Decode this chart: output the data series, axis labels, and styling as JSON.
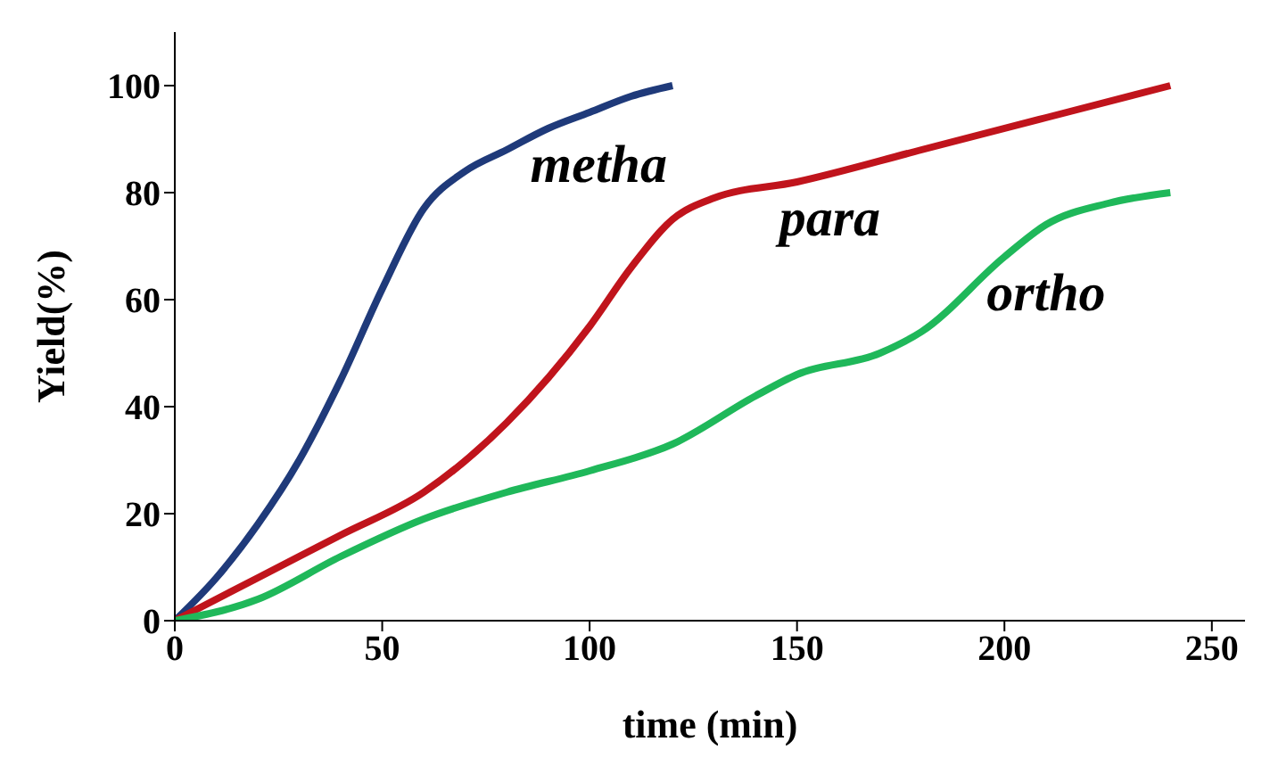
{
  "chart_data": {
    "type": "line",
    "xlabel": "time (min)",
    "ylabel": "Yield(%)",
    "xlim": [
      0,
      258
    ],
    "ylim": [
      0,
      110
    ],
    "xticks": [
      0,
      50,
      100,
      150,
      200,
      250
    ],
    "yticks": [
      0,
      20,
      40,
      60,
      80,
      100
    ],
    "marker": "none",
    "line_style": "solid",
    "series": [
      {
        "name": "metha",
        "color": "#1f3a7a",
        "x": [
          0,
          10,
          20,
          30,
          40,
          50,
          60,
          70,
          80,
          90,
          100,
          110,
          120
        ],
        "values": [
          0,
          8,
          18,
          30,
          45,
          62,
          77,
          84,
          88,
          92,
          95,
          98,
          100
        ]
      },
      {
        "name": "para",
        "color": "#c0141c",
        "x": [
          0,
          20,
          40,
          60,
          80,
          100,
          110,
          120,
          130,
          150,
          180,
          210,
          240
        ],
        "values": [
          0,
          8,
          16,
          24,
          37,
          55,
          66,
          75,
          79,
          82,
          88,
          94,
          100
        ]
      },
      {
        "name": "ortho",
        "color": "#1fb85a",
        "x": [
          0,
          20,
          40,
          60,
          80,
          100,
          120,
          140,
          150,
          170,
          180,
          200,
          210,
          225,
          240
        ],
        "values": [
          0,
          4,
          12,
          19,
          24,
          28,
          33,
          42,
          46,
          50,
          54,
          68,
          74,
          78,
          80
        ]
      }
    ]
  }
}
